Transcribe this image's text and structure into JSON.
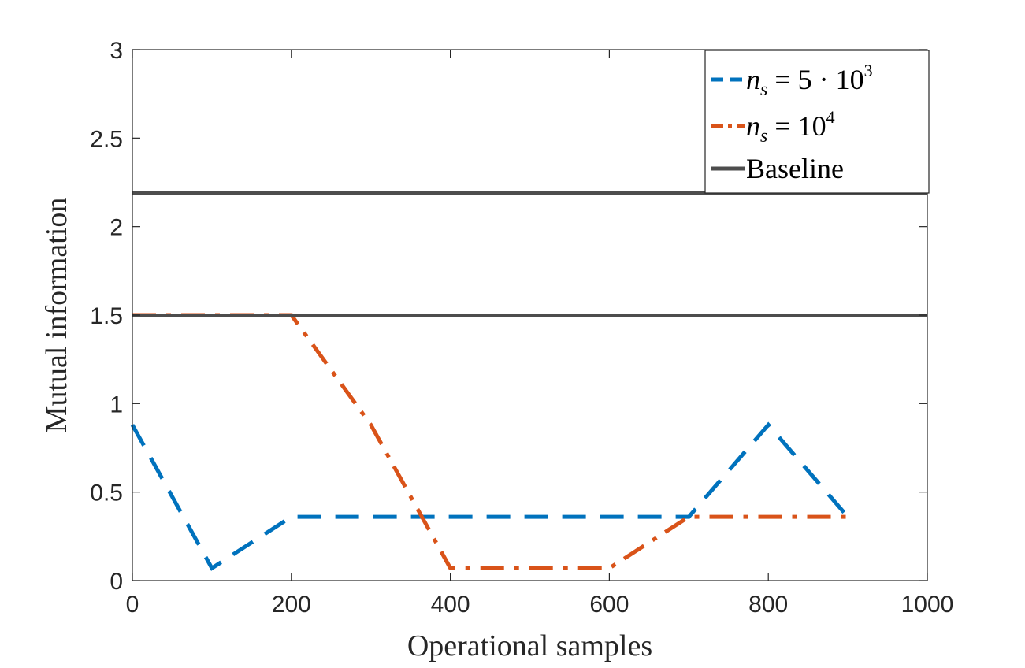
{
  "chart_data": {
    "type": "line",
    "title": "",
    "xlabel": "Operational samples",
    "ylabel": "Mutual information",
    "xlim": [
      0,
      1000
    ],
    "ylim": [
      0,
      3
    ],
    "xticks": [
      0,
      200,
      400,
      600,
      800,
      1000
    ],
    "yticks": [
      0,
      0.5,
      1,
      1.5,
      2,
      2.5,
      3
    ],
    "xtick_labels": [
      "0",
      "200",
      "400",
      "600",
      "800",
      "1000"
    ],
    "ytick_labels": [
      "0",
      "0.5",
      "1",
      "1.5",
      "2",
      "2.5",
      "3"
    ],
    "grid": false,
    "legend_position": "top-right",
    "series": [
      {
        "name": "n_s = 5·10^3",
        "legend": {
          "var": "n",
          "sub": "s",
          "rest": " = 5 · 10",
          "sup": "3"
        },
        "color": "#0072BD",
        "style": "dashed",
        "x": [
          0,
          100,
          200,
          300,
          400,
          500,
          600,
          700,
          800,
          900
        ],
        "y": [
          0.88,
          0.07,
          0.36,
          0.36,
          0.36,
          0.36,
          0.36,
          0.36,
          0.88,
          0.36
        ]
      },
      {
        "name": "n_s = 10^4",
        "legend": {
          "var": "n",
          "sub": "s",
          "rest": " = 10",
          "sup": "4"
        },
        "color": "#D95319",
        "style": "dashdot",
        "x": [
          0,
          100,
          200,
          300,
          400,
          500,
          600,
          700,
          800,
          900
        ],
        "y": [
          1.5,
          1.5,
          1.5,
          0.88,
          0.07,
          0.07,
          0.07,
          0.36,
          0.36,
          0.36
        ]
      },
      {
        "name": "Baseline",
        "legend": {
          "text": "Baseline"
        },
        "color": "#4D4D4D",
        "style": "solid",
        "hlines": [
          2.19,
          1.5
        ]
      }
    ]
  }
}
